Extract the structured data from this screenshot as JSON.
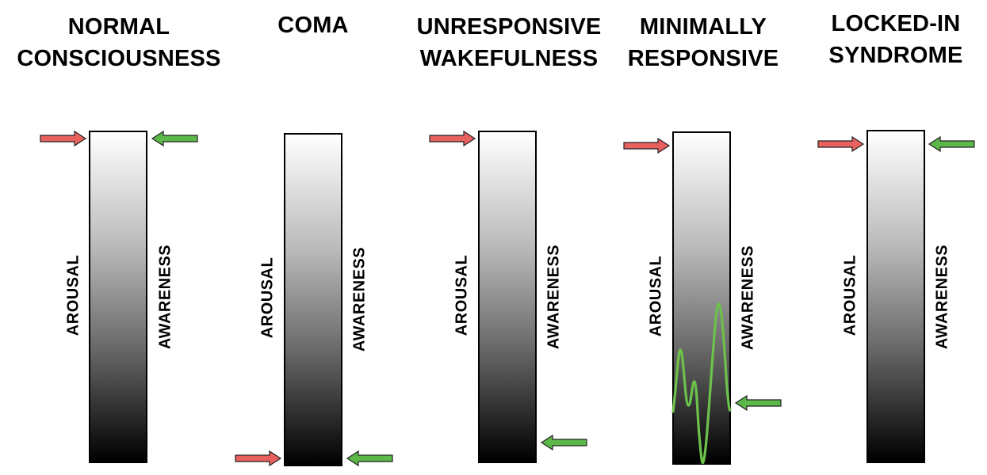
{
  "colors": {
    "arousal_arrow": "#e8615f",
    "awareness_arrow": "#5cb848",
    "wave": "#6cc24a",
    "bar_top": "#ffffff",
    "bar_bottom": "#000000"
  },
  "icons": [
    "arousal-arrow-icon",
    "awareness-arrow-icon",
    "awareness-wave-icon"
  ],
  "panels": [
    {
      "title_line1": "NORMAL",
      "title_line2": "CONSCIOUSNESS",
      "arousal_label": "AROUSAL",
      "awareness_label": "AWARENESS",
      "arousal_level": 1.0,
      "awareness_level": 1.0
    },
    {
      "title_line1": "COMA",
      "title_line2": "",
      "arousal_label": "AROUSAL",
      "awareness_label": "AWARENESS",
      "arousal_level": 0.0,
      "awareness_level": 0.0
    },
    {
      "title_line1": "UNRESPONSIVE",
      "title_line2": "WAKEFULNESS",
      "arousal_label": "AROUSAL",
      "awareness_label": "AWARENESS",
      "arousal_level": 1.0,
      "awareness_level": 0.04
    },
    {
      "title_line1": "MINIMALLY",
      "title_line2": "RESPONSIVE",
      "arousal_label": "AROUSAL",
      "awareness_label": "AWARENESS",
      "arousal_level": 0.98,
      "awareness_level": 0.17
    },
    {
      "title_line1": "LOCKED-IN",
      "title_line2": "SYNDROME",
      "arousal_label": "AROUSAL",
      "awareness_label": "AWARENESS",
      "arousal_level": 0.98,
      "awareness_level": 0.98
    }
  ]
}
